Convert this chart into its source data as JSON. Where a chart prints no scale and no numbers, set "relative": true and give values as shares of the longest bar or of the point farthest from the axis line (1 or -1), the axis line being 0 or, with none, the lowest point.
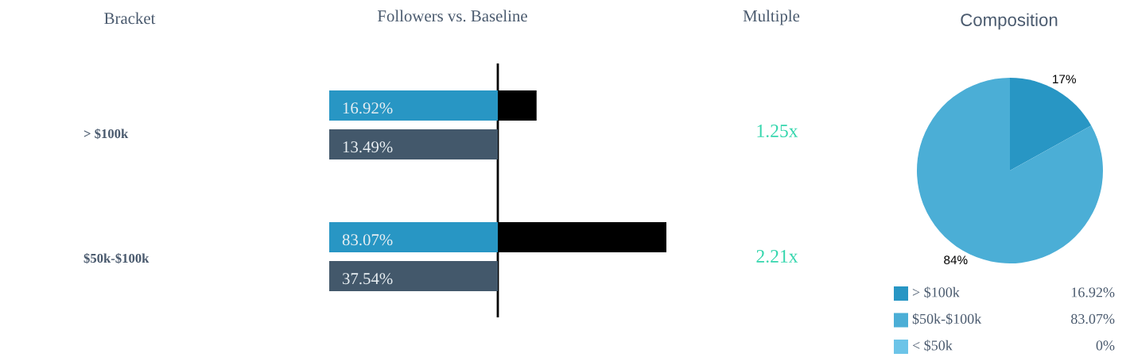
{
  "chart_data": [
    {
      "type": "other",
      "title": "Bracket",
      "annotations": [
        "> $100k",
        "$50k-$100k"
      ]
    },
    {
      "type": "bar",
      "title": "Followers vs. Baseline",
      "orientation": "horizontal",
      "relative": true,
      "categories": [
        null,
        null
      ],
      "series": [
        {
          "color": "#000000",
          "values": [
            0.23,
            1
          ]
        }
      ]
    },
    {
      "type": "other",
      "annotations": [
        "16.92%",
        "13.49%",
        "83.07%",
        "37.54%"
      ]
    },
    {
      "type": "other",
      "title": "Multiple",
      "annotations": [
        "1.25x",
        "2.21x"
      ]
    },
    {
      "type": "pie",
      "title": "Composition",
      "categories": [
        "> $100k",
        "$50k-$100k",
        "< $50k"
      ],
      "values": [
        16.92,
        83.07,
        0
      ],
      "colors": [
        "#2896c4",
        "#4baed6",
        "#6cc4e8"
      ],
      "legend": "bottom",
      "value_labels": [
        "16.92%",
        "83.07%",
        "0%"
      ],
      "annotations": [
        "17%",
        "84%"
      ]
    }
  ]
}
